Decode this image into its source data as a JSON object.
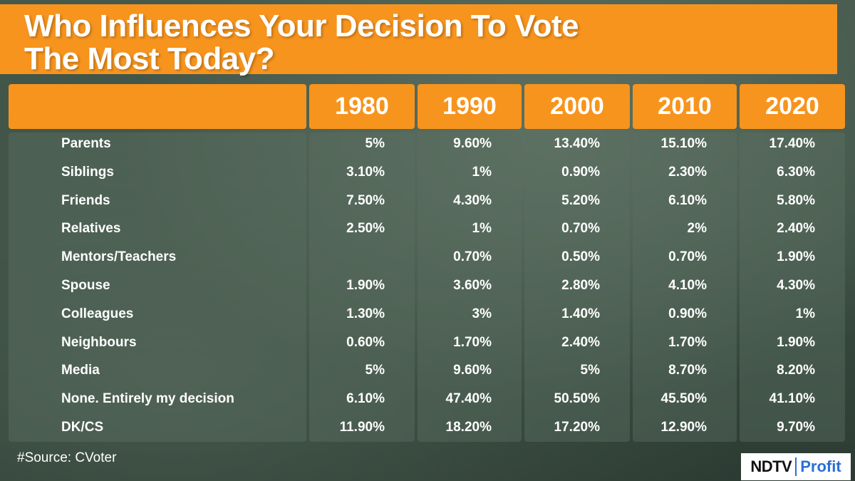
{
  "title": {
    "line1": "Who Influences Your Decision To Vote",
    "line2": "The Most Today?"
  },
  "source": "#Source: CVoter",
  "logo": {
    "part1": "NDTV",
    "part2": "Profit"
  },
  "colors": {
    "accent": "#f7941d",
    "background": "#3f5246",
    "text": "#ffffff",
    "logo_blue": "#2a6fd6"
  },
  "chart_data": {
    "type": "table",
    "title": "Who Influences Your Decision To Vote The Most Today?",
    "columns": [
      "1980",
      "1990",
      "2000",
      "2010",
      "2020"
    ],
    "rows": [
      {
        "label": "Parents",
        "values": [
          "5%",
          "9.60%",
          "13.40%",
          "15.10%",
          "17.40%"
        ]
      },
      {
        "label": "Siblings",
        "values": [
          "3.10%",
          "1%",
          "0.90%",
          "2.30%",
          "6.30%"
        ]
      },
      {
        "label": "Friends",
        "values": [
          "7.50%",
          "4.30%",
          "5.20%",
          "6.10%",
          "5.80%"
        ]
      },
      {
        "label": "Relatives",
        "values": [
          "2.50%",
          "1%",
          "0.70%",
          "2%",
          "2.40%"
        ]
      },
      {
        "label": "Mentors/Teachers",
        "values": [
          "",
          "0.70%",
          "0.50%",
          "0.70%",
          "1.90%"
        ]
      },
      {
        "label": "Spouse",
        "values": [
          "1.90%",
          "3.60%",
          "2.80%",
          "4.10%",
          "4.30%"
        ]
      },
      {
        "label": "Colleagues",
        "values": [
          "1.30%",
          "3%",
          "1.40%",
          "0.90%",
          "1%"
        ]
      },
      {
        "label": "Neighbours",
        "values": [
          "0.60%",
          "1.70%",
          "2.40%",
          "1.70%",
          "1.90%"
        ]
      },
      {
        "label": "Media",
        "values": [
          "5%",
          "9.60%",
          "5%",
          "8.70%",
          "8.20%"
        ]
      },
      {
        "label": "None. Entirely my decision",
        "values": [
          "6.10%",
          "47.40%",
          "50.50%",
          "45.50%",
          "41.10%"
        ]
      },
      {
        "label": "DK/CS",
        "values": [
          "11.90%",
          "18.20%",
          "17.20%",
          "12.90%",
          "9.70%"
        ]
      }
    ]
  }
}
